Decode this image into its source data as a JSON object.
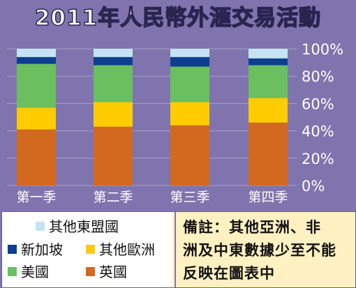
{
  "title": "2011年人民幣外滙交易活動",
  "chart_data": {
    "type": "bar",
    "stacked": true,
    "title": "2011年人民幣外滙交易活動",
    "categories": [
      "第一季",
      "第二季",
      "第三季",
      "第四季"
    ],
    "y_ticks": [
      "0%",
      "20%",
      "40%",
      "60%",
      "80%",
      "100%"
    ],
    "ylim": [
      0,
      100
    ],
    "grid": true,
    "series": [
      {
        "name": "英國",
        "color": "#d2691e",
        "values": [
          41,
          43,
          44,
          46
        ]
      },
      {
        "name": "其他歐洲",
        "color": "#ffcc00",
        "values": [
          16,
          18,
          17,
          18
        ]
      },
      {
        "name": "美國",
        "color": "#6abf5e",
        "values": [
          32,
          27,
          26,
          24
        ]
      },
      {
        "name": "新加坡",
        "color": "#0d3f8f",
        "values": [
          5,
          6,
          7,
          5
        ]
      },
      {
        "name": "其他東盟國",
        "color": "#c4e4f5",
        "values": [
          6,
          6,
          6,
          7
        ]
      }
    ]
  },
  "legend": {
    "items": [
      {
        "label": "其他東盟國",
        "color": "#c4e4f5"
      },
      {
        "label": "新加坡",
        "color": "#0d3f8f"
      },
      {
        "label": "其他歐洲",
        "color": "#ffcc00"
      },
      {
        "label": "美國",
        "color": "#6abf5e"
      },
      {
        "label": "英國",
        "color": "#d2691e"
      }
    ]
  },
  "note": {
    "line1": "備註：其他亞洲、非",
    "line2": "洲及中東數據少至不能",
    "line3": "反映在圖表中"
  },
  "colors": {
    "background": "#7f74ad",
    "note_background": "#fff1c2"
  }
}
